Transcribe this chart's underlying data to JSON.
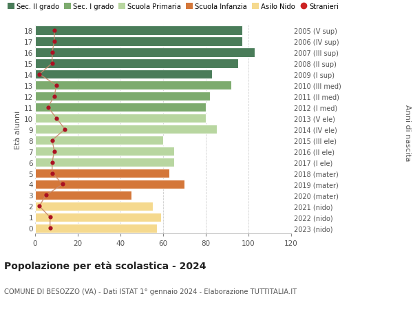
{
  "ages": [
    0,
    1,
    2,
    3,
    4,
    5,
    6,
    7,
    8,
    9,
    10,
    11,
    12,
    13,
    14,
    15,
    16,
    17,
    18
  ],
  "bar_values": [
    57,
    59,
    55,
    45,
    70,
    63,
    65,
    65,
    60,
    85,
    80,
    80,
    82,
    92,
    83,
    95,
    103,
    97,
    97
  ],
  "stranieri": [
    7,
    7,
    2,
    5,
    13,
    8,
    8,
    9,
    8,
    14,
    10,
    6,
    9,
    10,
    2,
    8,
    8,
    9,
    9
  ],
  "right_labels": [
    "2023 (nido)",
    "2022 (nido)",
    "2021 (nido)",
    "2020 (mater)",
    "2019 (mater)",
    "2018 (mater)",
    "2017 (I ele)",
    "2016 (II ele)",
    "2015 (III ele)",
    "2014 (IV ele)",
    "2013 (V ele)",
    "2012 (I med)",
    "2011 (II med)",
    "2010 (III med)",
    "2009 (I sup)",
    "2008 (II sup)",
    "2007 (III sup)",
    "2006 (IV sup)",
    "2005 (V sup)"
  ],
  "bar_colors": [
    "#f5d98e",
    "#f5d98e",
    "#f5d98e",
    "#d4773a",
    "#d4773a",
    "#d4773a",
    "#b8d6a0",
    "#b8d6a0",
    "#b8d6a0",
    "#b8d6a0",
    "#b8d6a0",
    "#7dab6e",
    "#7dab6e",
    "#7dab6e",
    "#4a7c59",
    "#4a7c59",
    "#4a7c59",
    "#4a7c59",
    "#4a7c59"
  ],
  "stranieri_color": "#aa1122",
  "stranieri_line_color": "#c8896a",
  "ylabel_left": "Età alunni",
  "ylabel_right": "Anni di nascita",
  "xlim": [
    0,
    120
  ],
  "xticks": [
    0,
    20,
    40,
    60,
    80,
    100,
    120
  ],
  "legend_labels": [
    "Sec. II grado",
    "Sec. I grado",
    "Scuola Primaria",
    "Scuola Infanzia",
    "Asilo Nido",
    "Stranieri"
  ],
  "legend_colors": [
    "#4a7c59",
    "#7dab6e",
    "#b8d6a0",
    "#d4773a",
    "#f5d98e",
    "#cc2222"
  ],
  "title": "Popolazione per età scolastica - 2024",
  "subtitle": "COMUNE DI BESOZZO (VA) - Dati ISTAT 1° gennaio 2024 - Elaborazione TUTTITALIA.IT",
  "bg_color": "#ffffff",
  "plot_bg_color": "#ffffff",
  "grid_color": "#cccccc",
  "tick_color": "#888888",
  "label_color": "#555555"
}
